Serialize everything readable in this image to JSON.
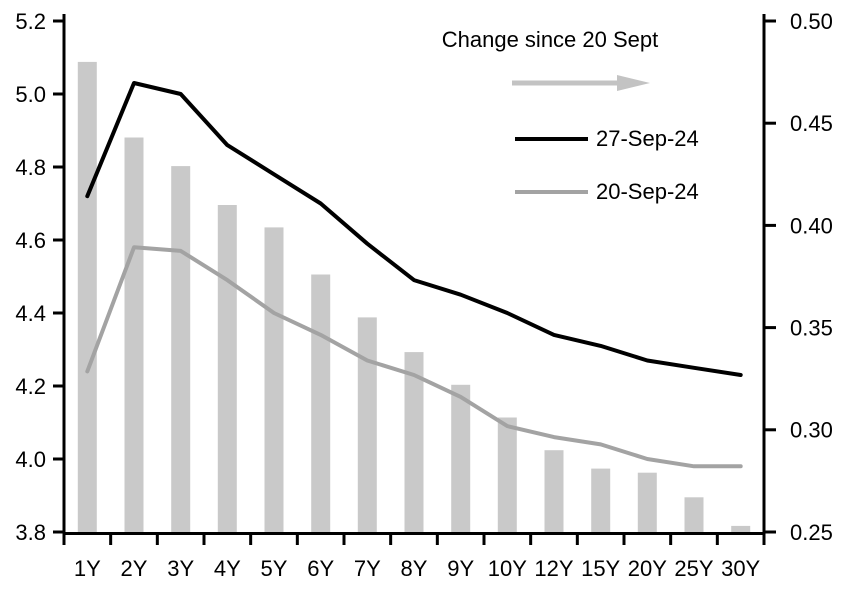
{
  "chart_data": {
    "type": "combo-bar-line",
    "categories": [
      "1Y",
      "2Y",
      "3Y",
      "4Y",
      "5Y",
      "6Y",
      "7Y",
      "8Y",
      "9Y",
      "10Y",
      "12Y",
      "15Y",
      "20Y",
      "25Y",
      "30Y"
    ],
    "series": [
      {
        "name": "Change since 20 Sept",
        "type": "bar",
        "axis": "right",
        "values": [
          0.48,
          0.443,
          0.429,
          0.41,
          0.399,
          0.376,
          0.355,
          0.338,
          0.322,
          0.306,
          0.29,
          0.281,
          0.279,
          0.267,
          0.253
        ]
      },
      {
        "name": "27-Sep-24",
        "type": "line",
        "axis": "left",
        "values": [
          4.72,
          5.03,
          5.0,
          4.86,
          4.78,
          4.7,
          4.59,
          4.49,
          4.45,
          4.4,
          4.34,
          4.31,
          4.27,
          4.25,
          4.23
        ]
      },
      {
        "name": "20-Sep-24",
        "type": "line",
        "axis": "left",
        "values": [
          4.24,
          4.58,
          4.57,
          4.49,
          4.4,
          4.34,
          4.27,
          4.23,
          4.17,
          4.09,
          4.06,
          4.04,
          4.0,
          3.98,
          3.98
        ]
      }
    ],
    "left_axis": {
      "min": 3.8,
      "max": 5.2,
      "ticks": [
        "5.2",
        "5.0",
        "4.8",
        "4.6",
        "4.4",
        "4.2",
        "4.0",
        "3.8"
      ]
    },
    "right_axis": {
      "min": 0.25,
      "max": 0.5,
      "ticks": [
        "0.50",
        "0.45",
        "0.40",
        "0.35",
        "0.30",
        "0.25"
      ]
    },
    "grid": false,
    "legend_position": "top-center-inside",
    "xlabel": "",
    "ylabel_left": "",
    "ylabel_right": ""
  },
  "colors": {
    "bar": "#c9c9c9",
    "line_27sep": "#000000",
    "line_20sep": "#a3a3a3",
    "arrow": "#c3c3c3",
    "axis": "#000000",
    "text": "#000000",
    "background": "#ffffff"
  }
}
